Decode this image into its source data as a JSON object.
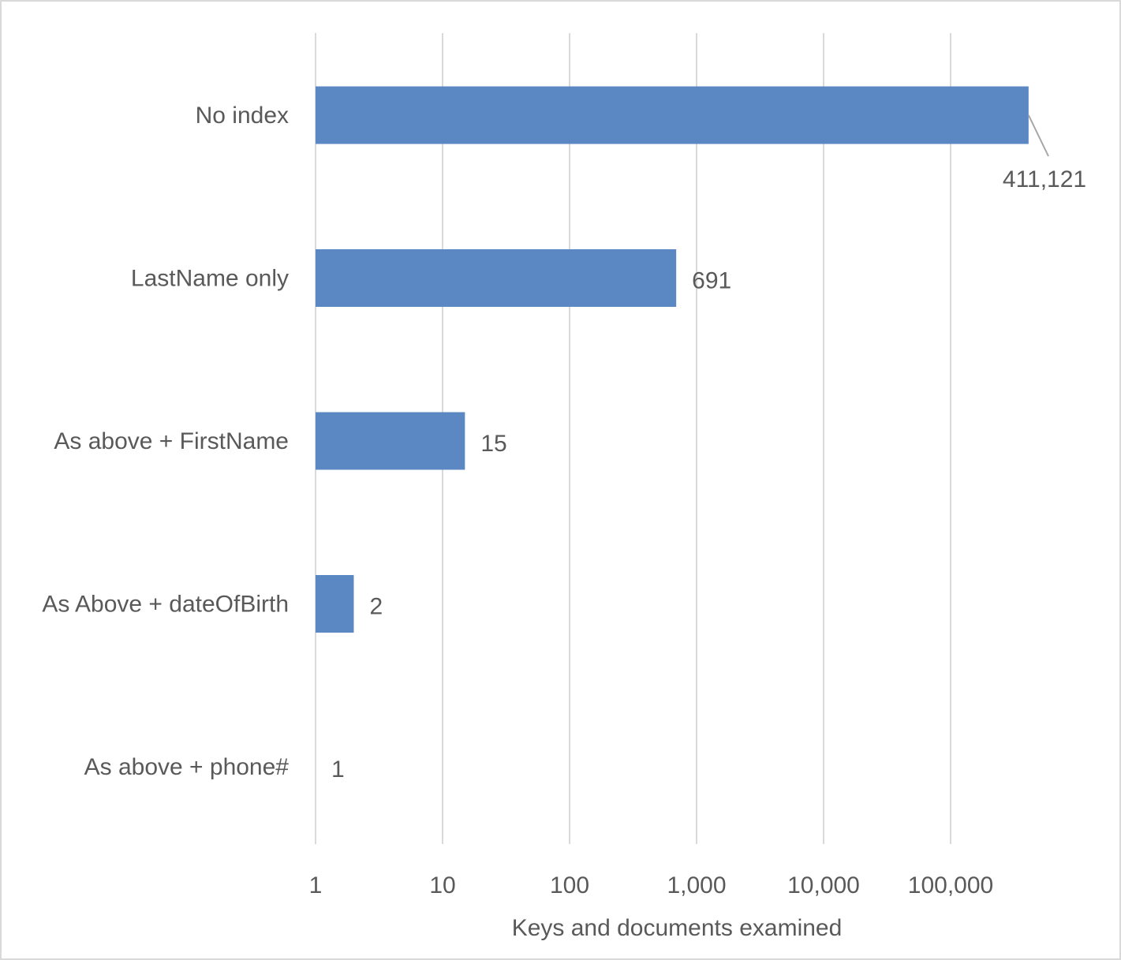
{
  "chart_data": {
    "type": "bar",
    "orientation": "horizontal",
    "scale": "log",
    "categories": [
      "No index",
      "LastName only",
      "As above + FirstName",
      "As Above + dateOfBirth",
      "As above + phone#"
    ],
    "values": [
      411121,
      691,
      15,
      2,
      1
    ],
    "value_labels": [
      "411,121",
      "691",
      "15",
      "2",
      "1"
    ],
    "xlabel": "Keys and documents examined",
    "ylabel": "",
    "xticks": [
      1,
      10,
      100,
      1000,
      10000,
      100000
    ],
    "xtick_labels": [
      "1",
      "10",
      "100",
      "1,000",
      "10,000",
      "100,000"
    ],
    "xlim": [
      1,
      1000000
    ],
    "grid": true,
    "legend": "none",
    "colors": {
      "bar": "#5b87c2",
      "grid": "#d9d9d9",
      "text": "#595959",
      "border": "#d9d9d9",
      "leader_line": "#a6a6a6"
    }
  }
}
